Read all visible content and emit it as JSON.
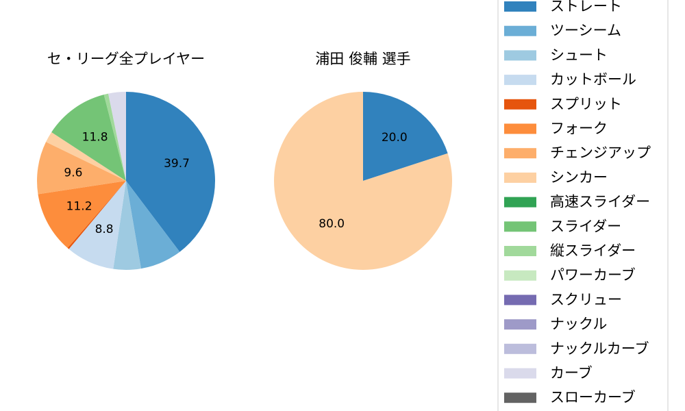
{
  "charts": [
    {
      "title": "セ・リーグ全プレイヤー",
      "chart_data": {
        "type": "pie",
        "title": "セ・リーグ全プレイヤー",
        "categories": [
          "ストレート",
          "ツーシーム",
          "シュート",
          "カットボール",
          "スプリット",
          "フォーク",
          "チェンジアップ",
          "シンカー",
          "高速スライダー",
          "スライダー",
          "縦スライダー",
          "パワーカーブ",
          "スクリュー",
          "ナックル",
          "ナックルカーブ",
          "カーブ",
          "スローカーブ"
        ],
        "values": [
          39.7,
          7.6,
          5.0,
          8.8,
          0.3,
          11.2,
          9.6,
          2.0,
          0.0,
          11.8,
          0.8,
          0.0,
          0.0,
          0.0,
          0.0,
          3.2,
          0.0
        ],
        "data_labels": [
          "39.7",
          "",
          "",
          "8.8",
          "",
          "11.2",
          "9.6",
          "",
          "",
          "11.8",
          "",
          "",
          "",
          "",
          "",
          "",
          ""
        ],
        "start_angle_deg": 90,
        "direction": "clockwise"
      }
    },
    {
      "title": "浦田 俊輔  選手",
      "chart_data": {
        "type": "pie",
        "title": "浦田 俊輔  選手",
        "categories": [
          "ストレート",
          "シンカー"
        ],
        "values": [
          20.0,
          80.0
        ],
        "data_labels": [
          "20.0",
          "80.0"
        ],
        "start_angle_deg": 90,
        "direction": "clockwise"
      }
    }
  ],
  "legend": {
    "placement": "right",
    "items": [
      {
        "label": "ストレート",
        "color": "#3182bd"
      },
      {
        "label": "ツーシーム",
        "color": "#6baed6"
      },
      {
        "label": "シュート",
        "color": "#9ecae1"
      },
      {
        "label": "カットボール",
        "color": "#c6dbef"
      },
      {
        "label": "スプリット",
        "color": "#e6550d"
      },
      {
        "label": "フォーク",
        "color": "#fd8d3c"
      },
      {
        "label": "チェンジアップ",
        "color": "#fdae6b"
      },
      {
        "label": "シンカー",
        "color": "#fdd0a2"
      },
      {
        "label": "高速スライダー",
        "color": "#31a354"
      },
      {
        "label": "スライダー",
        "color": "#74c476"
      },
      {
        "label": "縦スライダー",
        "color": "#a1d99b"
      },
      {
        "label": "パワーカーブ",
        "color": "#c7e9c0"
      },
      {
        "label": "スクリュー",
        "color": "#756bb1"
      },
      {
        "label": "ナックル",
        "color": "#9e9ac8"
      },
      {
        "label": "ナックルカーブ",
        "color": "#bcbddc"
      },
      {
        "label": "カーブ",
        "color": "#dadaeb"
      },
      {
        "label": "スローカーブ",
        "color": "#636363"
      }
    ]
  }
}
